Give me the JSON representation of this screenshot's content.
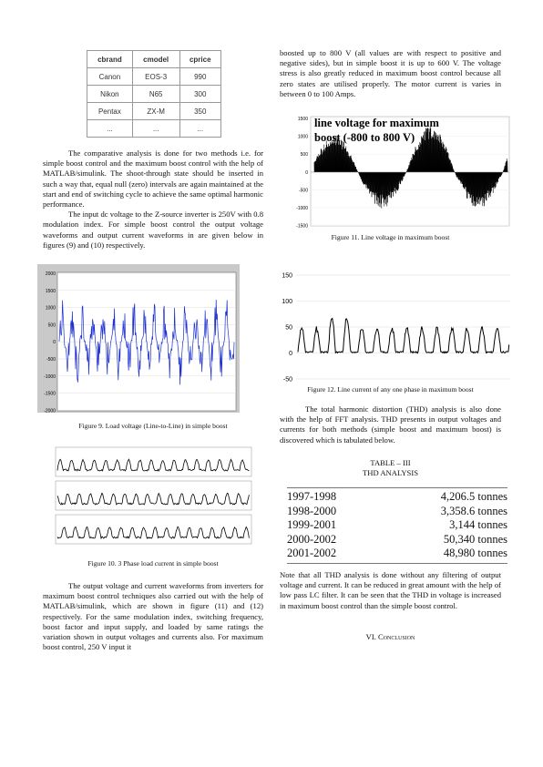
{
  "top_table": {
    "headers": [
      "cbrand",
      "cmodel",
      "cprice"
    ],
    "rows": [
      [
        "Canon",
        "EOS-3",
        "990"
      ],
      [
        "Nikon",
        "N65",
        "300"
      ],
      [
        "Pentax",
        "ZX-M",
        "350"
      ],
      [
        "...",
        "...",
        "..."
      ]
    ]
  },
  "left": {
    "p1": "The comparative analysis is done for two methods i.e. for simple boost control and the maximum boost control with the help of MATLAB/simulink. The shoot-through state should be inserted in such a way that, equal null (zero) intervals are again maintained at the start and end of switching cycle to achieve the same optimal harmonic performance.",
    "p2": "The input dc voltage to the Z-source inverter is 250V with 0.8 modulation index. For simple boost control the output voltage waveforms and output current waveforms in are given below in figures (9) and (10) respectively.",
    "fig9_caption": "Figure 9. Load voltage (Line-to-Line) in simple boost",
    "fig10_caption": "Figure 10. 3 Phase load current in simple boost",
    "p3": "The output voltage and current waveforms from inverters for maximum boost control techniques also carried out with the help of MATLAB/simulink, which are shown in figure (11) and (12) respectively. For the same modulation index, switching frequency, boost factor and input supply, and loaded by same ratings the variation shown in output voltages and currents also. For maximum boost control, 250 V input it"
  },
  "right": {
    "p1": "boosted up to 800 V (all values are with respect to positive and negative sides), but in simple boost it is up to 600 V. The voltage stress is also greatly reduced in maximum boost control because all zero states are utilised properly. The motor current is varies in between 0 to 100 Amps.",
    "fig11_title_line1": "line voltage for maximum",
    "fig11_title_line2": "boost (-800 to 800 V)",
    "fig11_caption": "Figure 11. Line voltage in maximum boost",
    "fig12_caption": "Figure 12. Line current of any one phase in maximum boost",
    "p2": "The total harmonic distortion (THD) analysis is also done with the help of FFT analysis. THD presents in output voltages and currents for both methods (simple boost and maximum boost) is discovered which is tabulated below.",
    "table_title1": "TABLE – III",
    "table_title2": "THD ANALYSIS",
    "note": "Note that all THD analysis is done without any filtering of output voltage and current. It can be reduced in great amount with the help of low pass LC filter. It can be seen that the THD in voltage is increased in maximum boost control than the simple boost control.",
    "section": "VI. Conclusion"
  },
  "thd_rows": [
    [
      "1997-1998",
      "4,206.5 tonnes"
    ],
    [
      "1998-2000",
      "3,358.6 tonnes"
    ],
    [
      "1999-2001",
      "3,144 tonnes"
    ],
    [
      "2000-2002",
      "50,340 tonnes"
    ],
    [
      "2001-2002",
      "48,980 tonnes"
    ]
  ],
  "fig9_ticks": [
    "2000",
    "1500",
    "1000",
    "500",
    "0",
    "-500",
    "-1000",
    "-1500",
    "-2000"
  ],
  "fig11_ticks": [
    "1500",
    "1000",
    "500",
    "0",
    "-500",
    "-1000",
    "-1500"
  ],
  "fig12_ticks": [
    "150",
    "100",
    "50",
    "0",
    "-50"
  ]
}
